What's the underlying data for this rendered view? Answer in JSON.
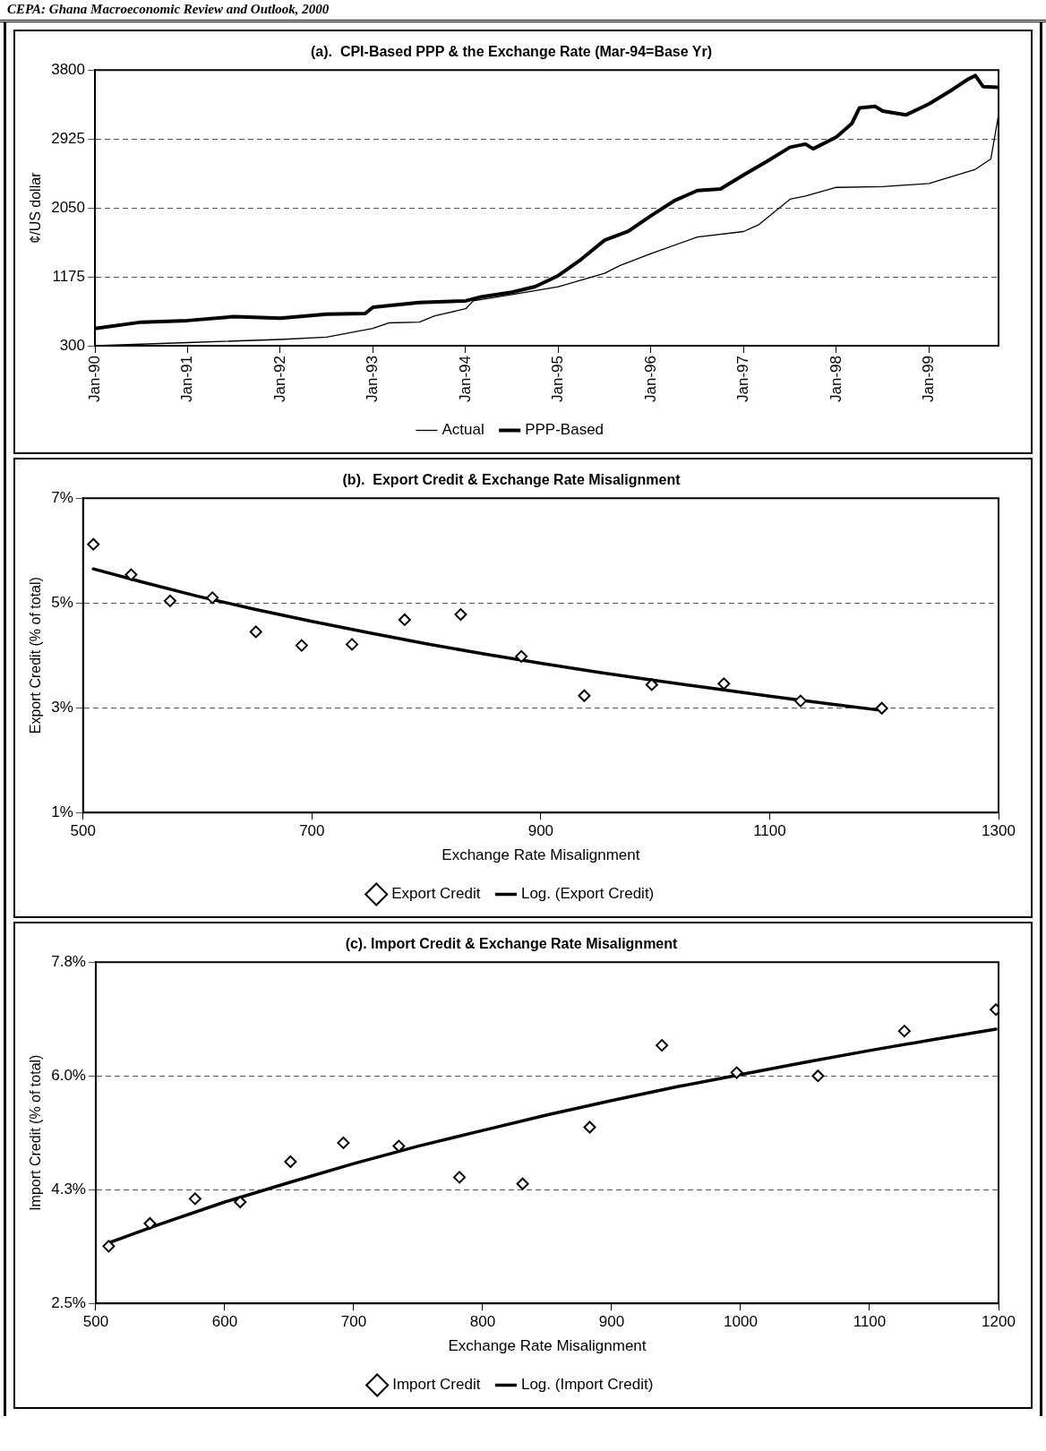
{
  "chart_data": [
    {
      "type": "line",
      "title": "(a).  CPI-Based PPP & the Exchange Rate (Mar-94=Base Yr)",
      "ylabel": "¢/US dollar",
      "annotations": [
        "CEPA: Ghana Macroeconomic Review and Outlook, 2000"
      ],
      "xlim": [
        "1990-01",
        "1999-10"
      ],
      "xticks": [
        {
          "value": "1990-01",
          "label": "Jan-90"
        },
        {
          "value": "1991-01",
          "label": "Jan-91"
        },
        {
          "value": "1992-01",
          "label": "Jan-92"
        },
        {
          "value": "1993-01",
          "label": "Jan-93"
        },
        {
          "value": "1994-01",
          "label": "Jan-94"
        },
        {
          "value": "1995-01",
          "label": "Jan-95"
        },
        {
          "value": "1996-01",
          "label": "Jan-96"
        },
        {
          "value": "1997-01",
          "label": "Jan-97"
        },
        {
          "value": "1998-01",
          "label": "Jan-98"
        },
        {
          "value": "1999-01",
          "label": "Jan-99"
        }
      ],
      "ylim": [
        300,
        3800
      ],
      "yticks": [
        300,
        1175,
        2050,
        2925,
        3800
      ],
      "grid": "y",
      "legend": "bottom",
      "line_style": "solid",
      "marker": "none",
      "series": [
        {
          "name": "Actual",
          "color": "#000000",
          "x": [
            "1990-01",
            "1991-01",
            "1992-01",
            "1992-07",
            "1993-01",
            "1993-03",
            "1993-07",
            "1993-09",
            "1994-01",
            "1994-02",
            "1994-07",
            "1995-01",
            "1995-07",
            "1995-09",
            "1996-01",
            "1996-07",
            "1997-01",
            "1997-03",
            "1997-07",
            "1997-09",
            "1998-01",
            "1998-07",
            "1999-01",
            "1999-07",
            "1999-09",
            "1999-10"
          ],
          "values": [
            300,
            340,
            380,
            410,
            520,
            590,
            600,
            680,
            770,
            870,
            950,
            1050,
            1220,
            1320,
            1470,
            1680,
            1750,
            1840,
            2160,
            2200,
            2310,
            2320,
            2360,
            2540,
            2670,
            3230
          ]
        },
        {
          "name": "PPP-Based",
          "color": "#000000",
          "x": [
            "1990-01",
            "1990-07",
            "1991-01",
            "1991-07",
            "1992-01",
            "1992-07",
            "1992-12",
            "1993-01",
            "1993-07",
            "1994-01",
            "1994-03",
            "1994-07",
            "1994-10",
            "1995-01",
            "1995-04",
            "1995-07",
            "1995-10",
            "1996-01",
            "1996-04",
            "1996-07",
            "1996-10",
            "1997-01",
            "1997-04",
            "1997-07",
            "1997-09",
            "1997-10",
            "1998-01",
            "1998-03",
            "1998-04",
            "1998-06",
            "1998-07",
            "1998-10",
            "1999-01",
            "1999-04",
            "1999-06",
            "1999-07",
            "1999-08",
            "1999-10"
          ],
          "values": [
            520,
            600,
            620,
            670,
            650,
            700,
            710,
            790,
            850,
            870,
            920,
            980,
            1050,
            1190,
            1400,
            1640,
            1750,
            1950,
            2140,
            2270,
            2290,
            2470,
            2640,
            2820,
            2860,
            2800,
            2950,
            3120,
            3320,
            3340,
            3280,
            3230,
            3370,
            3550,
            3680,
            3730,
            3590,
            3580
          ]
        }
      ]
    },
    {
      "type": "scatter",
      "title": "(b).  Export Credit & Exchange Rate Misalignment",
      "xlabel": "Exchange Rate Misalignment",
      "ylabel": "Export Credit (% of total)",
      "xlim": [
        500,
        1300
      ],
      "xticks": [
        500,
        700,
        900,
        1100,
        1300
      ],
      "ylim": [
        1,
        7
      ],
      "yticks": [
        {
          "value": 1,
          "label": "1%"
        },
        {
          "value": 3,
          "label": "3%"
        },
        {
          "value": 5,
          "label": "5%"
        },
        {
          "value": 7,
          "label": "7%"
        }
      ],
      "grid": "y",
      "legend": "bottom",
      "series": [
        {
          "name": "Export Credit",
          "color": "#000000",
          "marker": "diamond",
          "x": [
            509,
            542,
            576,
            613,
            651,
            691,
            735,
            781,
            830,
            883,
            938,
            997,
            1060,
            1127,
            1198
          ],
          "values": [
            6.12,
            5.54,
            5.04,
            5.1,
            4.45,
            4.19,
            4.21,
            4.68,
            4.78,
            3.98,
            3.23,
            3.44,
            3.46,
            3.13,
            2.99
          ]
        },
        {
          "name": "Log. (Export Credit)",
          "type": "line",
          "color": "#000000",
          "marker": "none",
          "line_style": "solid",
          "x": [
            509,
            550,
            600,
            650,
            700,
            750,
            800,
            850,
            900,
            950,
            1000,
            1050,
            1100,
            1150,
            1198
          ],
          "values": [
            5.65,
            5.41,
            5.13,
            4.88,
            4.65,
            4.43,
            4.22,
            4.03,
            3.85,
            3.68,
            3.52,
            3.37,
            3.22,
            3.08,
            2.95
          ]
        }
      ]
    },
    {
      "type": "scatter",
      "title": "(c). Import Credit & Exchange Rate Misalignment",
      "xlabel": "Exchange Rate Misalignment",
      "ylabel": "Import Credit (% of total)",
      "xlim": [
        500,
        1200
      ],
      "xticks": [
        500,
        600,
        700,
        800,
        900,
        1000,
        1100,
        1200
      ],
      "ylim": [
        2.5,
        7.75
      ],
      "yticks": [
        {
          "value": 2.5,
          "label": "2.5%"
        },
        {
          "value": 4.25,
          "label": "4.3%"
        },
        {
          "value": 6,
          "label": "6.0%"
        },
        {
          "value": 7.75,
          "label": "7.8%"
        }
      ],
      "grid": "y",
      "legend": "bottom",
      "series": [
        {
          "name": "Import Credit",
          "color": "#000000",
          "marker": "diamond",
          "x": [
            510,
            542,
            577,
            612,
            651,
            692,
            735,
            782,
            831,
            883,
            939,
            997,
            1060,
            1127,
            1198
          ],
          "values": [
            3.38,
            3.73,
            4.11,
            4.06,
            4.68,
            4.97,
            4.92,
            4.44,
            4.34,
            5.21,
            6.47,
            6.05,
            6.0,
            6.69,
            7.02
          ]
        },
        {
          "name": "Log. (Import Credit)",
          "type": "line",
          "color": "#000000",
          "marker": "none",
          "line_style": "solid",
          "x": [
            510,
            550,
            600,
            650,
            700,
            750,
            800,
            850,
            900,
            950,
            1000,
            1050,
            1100,
            1150,
            1198
          ],
          "values": [
            3.43,
            3.72,
            4.06,
            4.36,
            4.65,
            4.92,
            5.16,
            5.4,
            5.62,
            5.83,
            6.02,
            6.21,
            6.39,
            6.56,
            6.72
          ]
        }
      ]
    }
  ]
}
